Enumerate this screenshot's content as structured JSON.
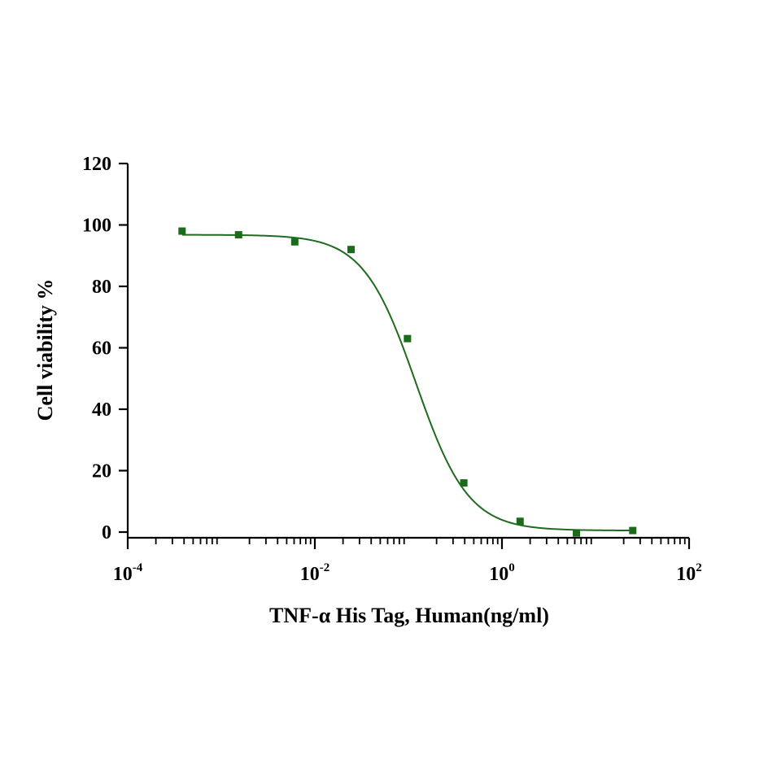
{
  "chart_data": {
    "type": "scatter",
    "xlabel": "TNF-α His Tag, Human(ng/ml)",
    "ylabel": "Cell viability %",
    "x_scale": "log10",
    "xlim": [
      0.0001,
      100
    ],
    "ylim": [
      0,
      120
    ],
    "y_ticks": [
      0,
      20,
      40,
      60,
      80,
      100,
      120
    ],
    "x_ticks": [
      {
        "value": 0.0001,
        "base": "10",
        "exp": "-4"
      },
      {
        "value": 0.01,
        "base": "10",
        "exp": "-2"
      },
      {
        "value": 1,
        "base": "10",
        "exp": "0"
      },
      {
        "value": 100,
        "base": "10",
        "exp": "2"
      }
    ],
    "points": [
      {
        "x": 0.000381,
        "y": 98
      },
      {
        "x": 0.00153,
        "y": 96.8
      },
      {
        "x": 0.0061,
        "y": 94.5
      },
      {
        "x": 0.0244,
        "y": 92
      },
      {
        "x": 0.0977,
        "y": 63
      },
      {
        "x": 0.391,
        "y": 16
      },
      {
        "x": 1.5625,
        "y": 3.5
      },
      {
        "x": 6.25,
        "y": -0.3
      },
      {
        "x": 25,
        "y": 0.5
      }
    ],
    "fit": {
      "model": "4PL",
      "top": 96.8,
      "bottom": 0.5,
      "ec50": 0.12,
      "hill": 1.55
    },
    "colors": {
      "marker": "#1a6b1a",
      "curve": "#1f6b1f",
      "axis": "#000000"
    },
    "grid": false,
    "legend": "none"
  }
}
